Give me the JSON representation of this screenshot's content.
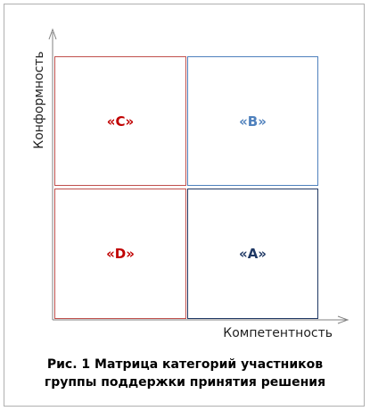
{
  "diagram": {
    "y_axis_label": "Конформность",
    "x_axis_label": "Компетентность",
    "cells": {
      "top_left": "«C»",
      "top_right": "«B»",
      "bottom_left": "«D»",
      "bottom_right": "«A»"
    },
    "colors": {
      "cell_c": "#c00000",
      "cell_b": "#4f81bd",
      "cell_d": "#c00000",
      "cell_a": "#1f3864",
      "axis": "#808080"
    }
  },
  "caption": {
    "line1": "Рис. 1 Матрица категорий участников",
    "line2": "группы поддержки принятия решения"
  }
}
